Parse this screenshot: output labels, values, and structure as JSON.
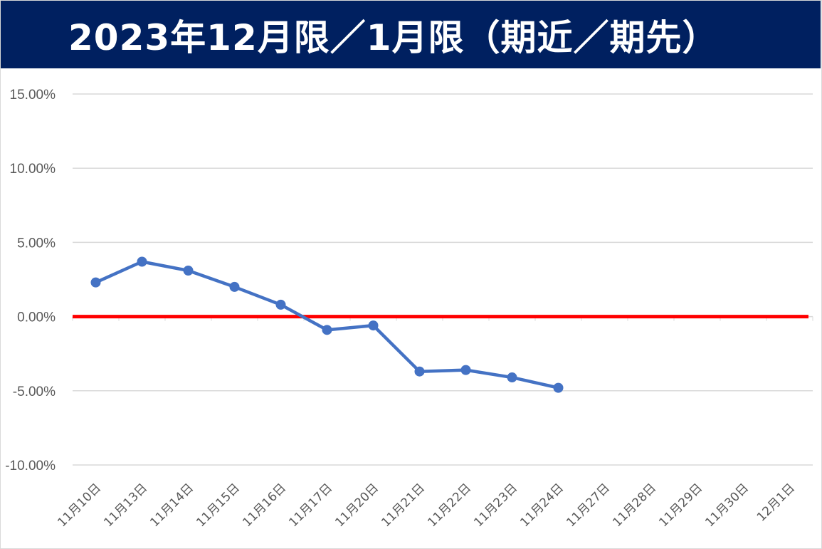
{
  "title": "2023年12月限／1月限（期近／期先）",
  "colors": {
    "title_bg": "#002060",
    "title_text": "#ffffff",
    "series": "#4472C4",
    "zero_line": "#FF0000",
    "grid": "#d9d9d9",
    "tick_text": "#595959"
  },
  "chart_data": {
    "type": "line",
    "title": "2023年12月限／1月限（期近／期先）",
    "xlabel": "",
    "ylabel": "",
    "ylim": [
      -10,
      15
    ],
    "y_ticks": [
      15,
      10,
      5,
      0,
      -5,
      -10
    ],
    "y_tick_labels": [
      "15.00%",
      "10.00%",
      "5.00%",
      "0.00%",
      "-5.00%",
      "-10.00%"
    ],
    "categories": [
      "11月10日",
      "11月13日",
      "11月14日",
      "11月15日",
      "11月16日",
      "11月17日",
      "11月20日",
      "11月21日",
      "11月22日",
      "11月23日",
      "11月24日",
      "11月27日",
      "11月28日",
      "11月29日",
      "11月30日",
      "12月1日"
    ],
    "series": [
      {
        "values": [
          2.3,
          3.7,
          3.1,
          2.0,
          0.8,
          -0.9,
          -0.6,
          -3.7,
          -3.6,
          -4.1,
          -4.8,
          null,
          null,
          null,
          null,
          null
        ]
      }
    ],
    "reference_line": {
      "y": 0
    },
    "grid": true,
    "legend": "none"
  }
}
